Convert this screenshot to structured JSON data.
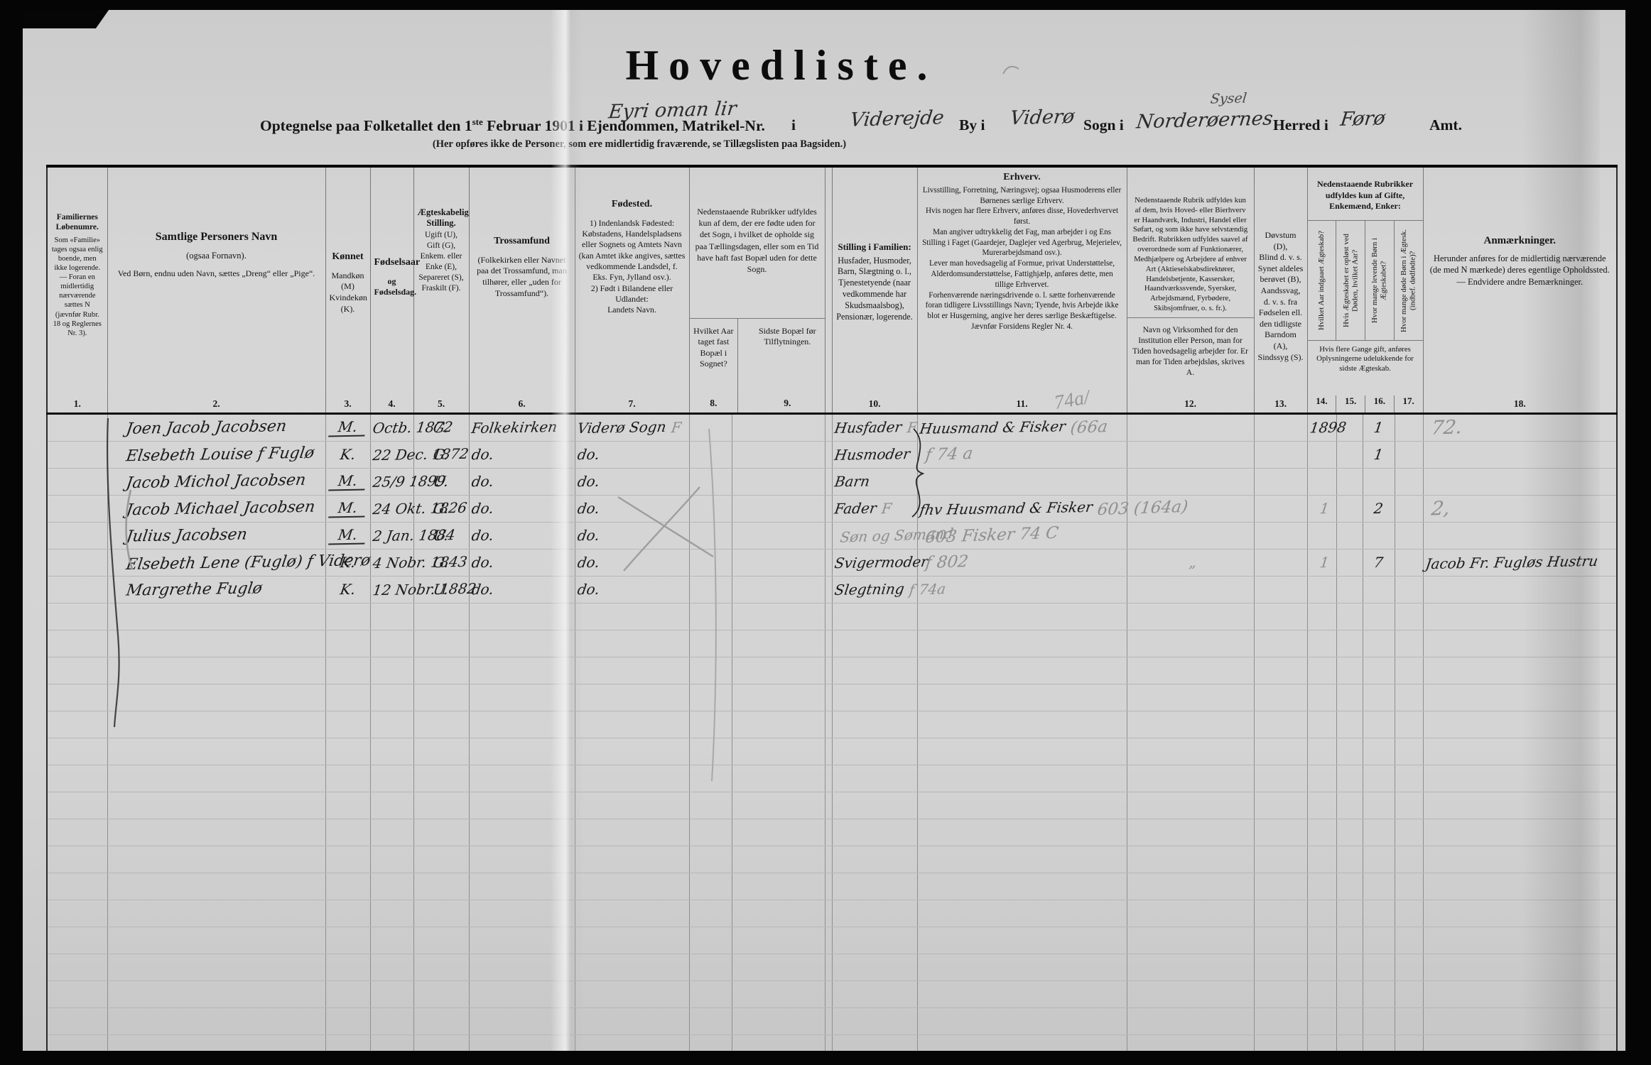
{
  "doc": {
    "title": "Hovedliste.",
    "subtitle": {
      "p1a": "Optegnelse paa Folketallet den 1",
      "sup": "ste",
      "p1b": " Februar 1901 i Ejendommen, Matrikel-Nr.",
      "hw_matrikel": "Eyri oman lir",
      "p_i": "i",
      "hw_sted": "Viderejde",
      "p_by": "By i",
      "hw_by": "Viderø",
      "p_sogn": "Sogn i",
      "hw_sogn": "Norderøernes",
      "hw_sysel": "Sysel",
      "p_herred": "Herred i",
      "hw_herred": "Førø",
      "p_amt": "Amt.",
      "note": "(Her opføres ikke de Personer, som ere midlertidig fraværende, se Tillægslisten paa Bagsiden.)"
    },
    "header_pencil": "74a/"
  },
  "header": {
    "c1": {
      "title": "Familiernes Løbenumre.",
      "body": "Som «Familie» tages ogsaa enlig boende, men ikke logerende. — Foran en midlertidig nærværende sættes N (jævnfør Rubr. 18 og Reglernes Nr. 3)."
    },
    "c2": {
      "title": "Samtlige Personers Navn",
      "sub": "(ogsaa Fornavn).",
      "body": "Ved Børn, endnu uden Navn, sættes „Dreng“ eller „Pige“."
    },
    "c3": {
      "title": "Kønnet",
      "body": "Mandkøn (M)\nKvindekøn (K)."
    },
    "c4": {
      "title": "Fødselsaar",
      "body": "og\nFødselsdag."
    },
    "c5": {
      "title": "Ægteskabelig Stilling.",
      "body": "Ugift (U), Gift (G), Enkem. eller Enke (E), Separeret (S), Fraskilt (F)."
    },
    "c6": {
      "title": "Trossamfund",
      "body": "(Folkekirken eller Navnet paa det Trossamfund, man tilhører, eller „uden for Trossamfund“)."
    },
    "c7": {
      "title": "Fødested.",
      "body": "1) Indenlandsk Fødested:\nKøbstadens, Handelspladsens eller Sognets og Amtets Navn (kan Amtet ikke angives, sættes vedkommende Landsdel, f. Eks. Fyn, Jylland osv.).\n2) Født i Bilandene eller Udlandet:\nLandets Navn."
    },
    "c8_9": {
      "note": "Nedenstaaende Rubrikker udfyldes kun af dem, der ere fødte uden for det Sogn, i hvilket de opholde sig paa Tællingsdagen, eller som en Tid have haft fast Bopæl uden for dette Sogn.",
      "col8": "Hvilket Aar taget fast Bopæl i Sognet?",
      "col9": "Sidste Bopæl før Tilflytningen."
    },
    "c10": {
      "title": "Stilling i Familien:",
      "body": "Husfader, Husmoder, Barn, Slægtning o. l., Tjenestetyende (naar vedkommende har Skudsmaalsbog), Pensionær, logerende."
    },
    "c11": {
      "title": "Erhverv.",
      "body": "Livsstilling, Forretning, Næringsvej; ogsaa Husmoderens eller Børnenes særlige Erhverv.\nHvis nogen har flere Erhverv, anføres disse, Hovederhvervet først.\nMan angiver udtrykkelig det Fag, man arbejder i og Ens Stilling i Faget (Gaardejer, Daglejer ved Agerbrug, Mejerielev, Murerarbejdsmand osv.).\nLever man hovedsagelig af Formue, privat Understøttelse, Alderdomsunderstøttelse, Fattighjælp, anføres dette, men tillige Erhvervet.\nForhenværende næringsdrivende o. l. sætte forhenværende foran tidligere Livsstillings Navn; Tyende, hvis Arbejde ikke blot er Husgerning, angive her deres særlige Beskæftigelse.\nJævnfør Forsidens Regler Nr. 4."
    },
    "c12": {
      "note1": "Nedenstaaende Rubrik udfyldes kun af dem, hvis Hoved- eller Bierhverv er Haandværk, Industri, Handel eller Søfart, og som ikke have selvstændig Bedrift.\nRubrikken udfyldes saavel af overordnede som af Funktionærer, Medhjælpere og Arbejdere af enhver Art (Aktieselskabsdirektører, Handelsbetjente, Kassersker, Haandværkssvende, Syersker, Arbejdsmænd, Fyrbødere, Skibsjomfruer, o. s. fr.).",
      "note2": "Navn og Virksomhed for den Institution eller Person, man for Tiden hovedsagelig arbejder for.\nEr man for Tiden arbejdsløs, skrives A."
    },
    "c13": {
      "body": "Døvstum (D),\nBlind d. v. s. Synet aldeles berøvet (B),\nAandssvag, d. v. s. fra Fødselen ell. den tidligste Barndom (A),\nSindssyg (S)."
    },
    "c14_17": {
      "note": "Nedenstaaende Rubrikker udfyldes kun af Gifte, Enkemænd, Enker:",
      "labels": [
        "Hvilket Aar indgaaet Ægteskab?",
        "Hvis Ægteskabet er opløst ved Døden, hvilket Aar?",
        "Hvor mange levende Børn i Ægteskabet?",
        "Hvor mange døde Børn i Ægtesk. (indbef. dødfødte)?"
      ],
      "foot": "Hvis flere Gange gift, anføres Oplysningerne udelukkende for sidste Ægteskab."
    },
    "c18": {
      "title": "Anmærkninger.",
      "body": "Herunder anføres for de midlertidig nærværende (de med N mærkede) deres egentlige Opholdssted. — Endvidere andre Bemærkninger."
    }
  },
  "table": {
    "colnums": [
      "1.",
      "2.",
      "3.",
      "4.",
      "5.",
      "6.",
      "7.",
      "8.",
      "9.",
      "10.",
      "11.",
      "12.",
      "13.",
      "14.",
      "15.",
      "16.",
      "17.",
      "18."
    ],
    "empty_rows": 17
  },
  "rows": [
    {
      "name": "Joen Jacob Jacobsen",
      "sex": {
        "i": "M.",
        "u": 1
      },
      "birth": "Octb. 1872",
      "marital": "G.",
      "tros": "Folkekirken",
      "birthplace": {
        "i": "Viderø Sogn",
        "p": "F"
      },
      "family": {
        "i": "Husfader",
        "p": "F"
      },
      "occupation": {
        "i": "Huusmand & Fisker",
        "p": "(66a"
      },
      "c14": "1898",
      "c16": "1",
      "remarks": {
        "p": "72."
      }
    },
    {
      "name": "Elsebeth Louise f Fuglø",
      "sex": "K.",
      "birth": "22 Dec. 1872",
      "marital": "G.",
      "tros": "do.",
      "birthplace": "do.",
      "family": "Husmoder",
      "occupation": {
        "p": "f 74 a"
      },
      "c16": "1"
    },
    {
      "name": "Jacob Michol Jacobsen",
      "sex": {
        "i": "M.",
        "u": 1
      },
      "birth": "25/9 1899",
      "marital": "U.",
      "tros": "do.",
      "birthplace": "do.",
      "family": "Barn"
    },
    {
      "name": "Jacob Michael Jacobsen",
      "sex": {
        "i": "M.",
        "u": 1
      },
      "birth": "24 Okt. 1826",
      "marital": "G.",
      "tros": "do.",
      "birthplace": "do.",
      "family": {
        "i": "Fader",
        "p": "F"
      },
      "occupation": {
        "i": "fhv Huusmand & Fisker",
        "p": "603 (164a)"
      },
      "c14": {
        "p": "1"
      },
      "c16": "2",
      "remarks": {
        "p": "2,"
      }
    },
    {
      "name": "Julius Jacobsen",
      "sex": {
        "i": "M.",
        "u": 1
      },
      "birth": "2 Jan. 1884",
      "marital": "U.",
      "tros": "do.",
      "birthplace": "do.",
      "family": {
        "p": "Søn og Sømand"
      },
      "occupation": {
        "p": "603  Fisker    74 C"
      }
    },
    {
      "name": "Elsebeth Lene (Fuglø) f Viderø",
      "sex": "K.",
      "birth": "4 Nobr. 1843",
      "marital": "G.",
      "tros": "do.",
      "birthplace": "do.",
      "family": "Svigermoder",
      "occupation": {
        "p": "f 802"
      },
      "c12": {
        "p": "„"
      },
      "c14": {
        "p": "1"
      },
      "c16": "7",
      "remarks": {
        "i": "Jacob Fr. Fugløs Hustru"
      }
    },
    {
      "name": "Margrethe Fuglø",
      "sex": "K.",
      "birth": "12 Nobr. 1882",
      "marital": "U.",
      "tros": "do.",
      "birthplace": "do.",
      "family": {
        "i": "Slegtning",
        "p": "f 74a"
      }
    }
  ]
}
